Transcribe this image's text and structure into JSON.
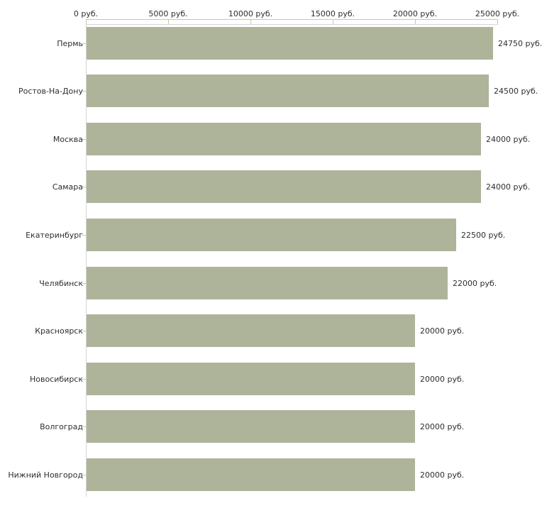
{
  "chart_data": {
    "type": "bar",
    "orientation": "horizontal",
    "title": "",
    "unit": "руб.",
    "categories": [
      "Пермь",
      "Ростов-На-Дону",
      "Москва",
      "Самара",
      "Екатеринбург",
      "Челябинск",
      "Красноярск",
      "Новосибирск",
      "Волгоград",
      "Нижний Новгород"
    ],
    "values": [
      24750,
      24500,
      24000,
      24000,
      22500,
      22000,
      20000,
      20000,
      20000,
      20000
    ],
    "value_labels": [
      "24750 руб.",
      "24500 руб.",
      "24000 руб.",
      "24000 руб.",
      "22500 руб.",
      "22000 руб.",
      "20000 руб.",
      "20000 руб.",
      "20000 руб.",
      "20000 руб."
    ],
    "x_axis": {
      "position": "top",
      "range": [
        0,
        25000
      ],
      "ticks": [
        0,
        5000,
        10000,
        15000,
        20000,
        25000
      ],
      "tick_labels": [
        "0 руб.",
        "5000 руб.",
        "10000 руб.",
        "15000 руб.",
        "20000 руб.",
        "25000 руб."
      ],
      "grid": false
    },
    "legend": null,
    "colors": {
      "bar": "#adb49a",
      "axis": "#c9c99e",
      "plot_border": "#d4d4d4",
      "text": "#2e2e2e",
      "background": "#ffffff"
    }
  }
}
